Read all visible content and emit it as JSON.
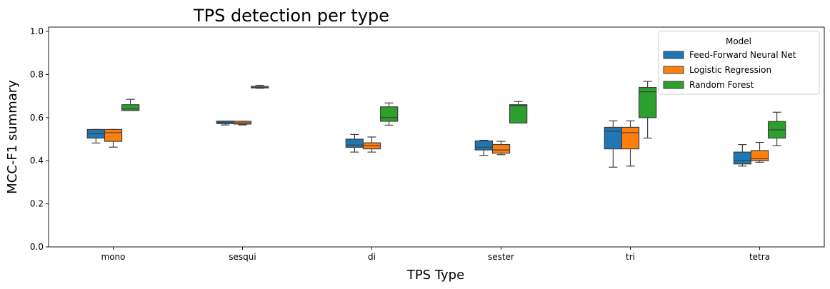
{
  "chart_data": {
    "type": "box",
    "title": "TPS detection per type",
    "xlabel": "TPS Type",
    "ylabel": "MCC-F1 summary",
    "ylim": [
      0.0,
      1.02
    ],
    "yticks": [
      0.0,
      0.2,
      0.4,
      0.6,
      0.8,
      1.0
    ],
    "ytick_labels": [
      "0.0",
      "0.2",
      "0.4",
      "0.6",
      "0.8",
      "1.0"
    ],
    "categories": [
      "mono",
      "sesqui",
      "di",
      "sester",
      "tri",
      "tetra"
    ],
    "legend": {
      "title": "Model",
      "position": "top-right"
    },
    "grid": false,
    "series": [
      {
        "name": "Feed-Forward Neural Net",
        "color": "#1f77b4",
        "boxes": [
          {
            "whislo": 0.482,
            "q1": 0.505,
            "med": 0.525,
            "q3": 0.545,
            "whishi": 0.545
          },
          {
            "whislo": 0.566,
            "q1": 0.572,
            "med": 0.578,
            "q3": 0.584,
            "whishi": 0.584
          },
          {
            "whislo": 0.44,
            "q1": 0.462,
            "med": 0.473,
            "q3": 0.5,
            "whishi": 0.522
          },
          {
            "whislo": 0.425,
            "q1": 0.45,
            "med": 0.463,
            "q3": 0.492,
            "whishi": 0.495
          },
          {
            "whislo": 0.37,
            "q1": 0.455,
            "med": 0.537,
            "q3": 0.555,
            "whishi": 0.585
          },
          {
            "whislo": 0.375,
            "q1": 0.385,
            "med": 0.4,
            "q3": 0.44,
            "whishi": 0.475
          }
        ]
      },
      {
        "name": "Logistic Regression",
        "color": "#ff7f0e",
        "boxes": [
          {
            "whislo": 0.463,
            "q1": 0.49,
            "med": 0.53,
            "q3": 0.545,
            "whishi": 0.545
          },
          {
            "whislo": 0.566,
            "q1": 0.57,
            "med": 0.576,
            "q3": 0.583,
            "whishi": 0.583
          },
          {
            "whislo": 0.44,
            "q1": 0.455,
            "med": 0.47,
            "q3": 0.483,
            "whishi": 0.51
          },
          {
            "whislo": 0.428,
            "q1": 0.435,
            "med": 0.45,
            "q3": 0.475,
            "whishi": 0.49
          },
          {
            "whislo": 0.375,
            "q1": 0.455,
            "med": 0.53,
            "q3": 0.555,
            "whishi": 0.585
          },
          {
            "whislo": 0.393,
            "q1": 0.4,
            "med": 0.41,
            "q3": 0.447,
            "whishi": 0.485
          }
        ]
      },
      {
        "name": "Random Forest",
        "color": "#2ca02c",
        "boxes": [
          {
            "whislo": 0.633,
            "q1": 0.633,
            "med": 0.64,
            "q3": 0.66,
            "whishi": 0.685
          },
          {
            "whislo": 0.736,
            "q1": 0.738,
            "med": 0.74,
            "q3": 0.745,
            "whishi": 0.75
          },
          {
            "whislo": 0.565,
            "q1": 0.583,
            "med": 0.6,
            "q3": 0.65,
            "whishi": 0.668
          },
          {
            "whislo": 0.575,
            "q1": 0.575,
            "med": 0.655,
            "q3": 0.66,
            "whishi": 0.675
          },
          {
            "whislo": 0.505,
            "q1": 0.6,
            "med": 0.72,
            "q3": 0.74,
            "whishi": 0.768
          },
          {
            "whislo": 0.47,
            "q1": 0.505,
            "med": 0.543,
            "q3": 0.582,
            "whishi": 0.625
          }
        ]
      }
    ]
  }
}
